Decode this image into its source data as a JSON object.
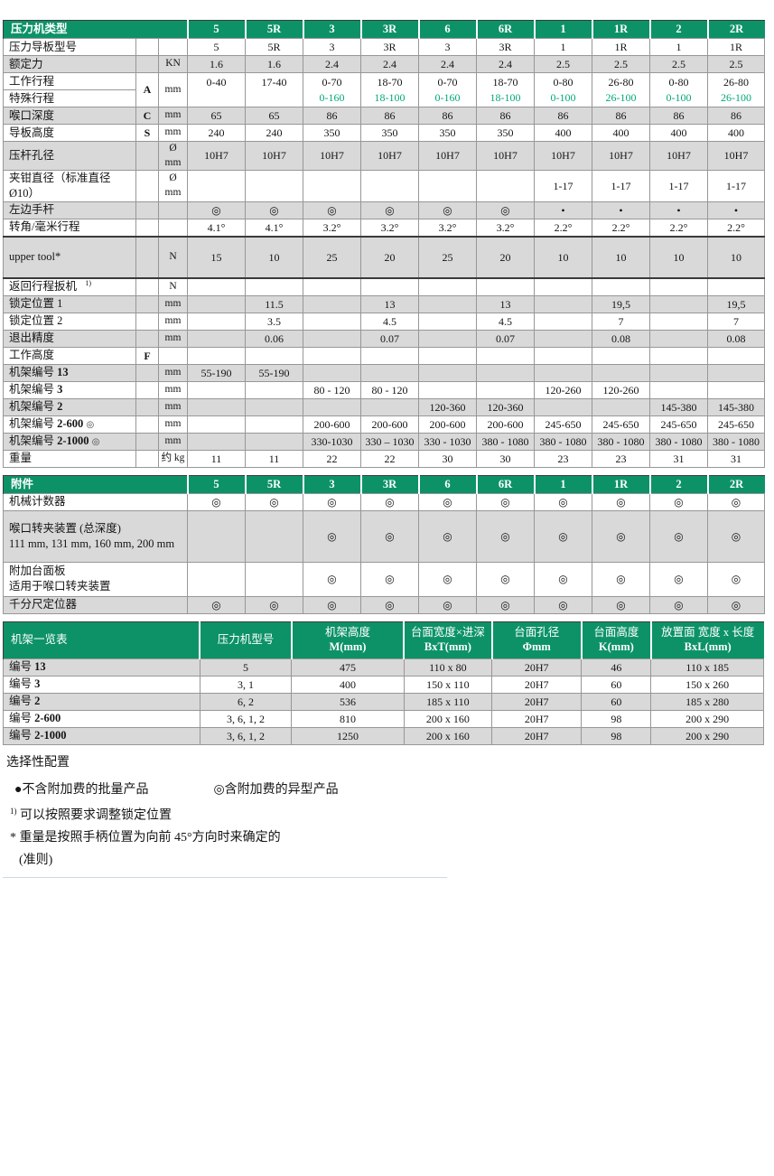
{
  "colors": {
    "header_green": "#0d9268",
    "special_green": "#00a87a",
    "row_gray": "#d9d9d9"
  },
  "press_table": {
    "title": "压力机类型",
    "columns": [
      "5",
      "5R",
      "3",
      "3R",
      "6",
      "6R",
      "1",
      "1R",
      "2",
      "2R"
    ],
    "rows": [
      {
        "label": "压力导板型号",
        "bg": "w",
        "values": [
          "5",
          "5R",
          "3",
          "3R",
          "3",
          "3R",
          "1",
          "1R",
          "1",
          "1R"
        ]
      },
      {
        "label": "额定力",
        "unit": "KN",
        "bg": "g",
        "values": [
          "1.6",
          "1.6",
          "2.4",
          "2.4",
          "2.4",
          "2.4",
          "2.5",
          "2.5",
          "2.5",
          "2.5"
        ]
      },
      {
        "type": "double",
        "label": "工作行程",
        "label2": "特殊行程",
        "letter": "A",
        "unit": "mm",
        "bg": "w",
        "values": [
          "0-40",
          "17-40",
          "0-70",
          "18-70",
          "0-70",
          "18-70",
          "0-80",
          "26-80",
          "0-80",
          "26-80"
        ],
        "values2": [
          "",
          "",
          "0-160",
          "18-100",
          "0-160",
          "18-100",
          "0-100",
          "26-100",
          "0-100",
          "26-100"
        ]
      },
      {
        "label": "喉口深度",
        "letter": "C",
        "unit": "mm",
        "bg": "g",
        "values": [
          "65",
          "65",
          "86",
          "86",
          "86",
          "86",
          "86",
          "86",
          "86",
          "86"
        ]
      },
      {
        "label": "导板高度",
        "letter": "S",
        "unit": "mm",
        "bg": "w",
        "values": [
          "240",
          "240",
          "350",
          "350",
          "350",
          "350",
          "400",
          "400",
          "400",
          "400"
        ]
      },
      {
        "label": "压杆孔径",
        "unit": "Ø mm",
        "bg": "g",
        "values": [
          "10H7",
          "10H7",
          "10H7",
          "10H7",
          "10H7",
          "10H7",
          "10H7",
          "10H7",
          "10H7",
          "10H7"
        ]
      },
      {
        "label": "夹钳直径（标准直径 Ø10）",
        "unit": "Ø mm",
        "bg": "w",
        "values": [
          "",
          "",
          "",
          "",
          "",
          "",
          "1-17",
          "1-17",
          "1-17",
          "1-17"
        ]
      },
      {
        "label": "左边手杆",
        "bg": "g",
        "values": [
          "◎",
          "◎",
          "◎",
          "◎",
          "◎",
          "◎",
          "•",
          "•",
          "•",
          "•"
        ]
      },
      {
        "label": "转角/毫米行程",
        "bg": "w",
        "values": [
          "4.1°",
          "4.1°",
          "3.2°",
          "3.2°",
          "3.2°",
          "3.2°",
          "2.2°",
          "2.2°",
          "2.2°",
          "2.2°"
        ]
      },
      {
        "label": "upper tool*",
        "unit": "N",
        "bg": "g",
        "size": "tall",
        "values": [
          "15",
          "10",
          "25",
          "20",
          "25",
          "20",
          "10",
          "10",
          "10",
          "10"
        ]
      },
      {
        "label": "返回行程扳机",
        "note_ref": "1)",
        "unit": "N",
        "bg": "w",
        "values": [
          "",
          "",
          "",
          "",
          "",
          "",
          "",
          "",
          "",
          ""
        ]
      },
      {
        "label": "锁定位置 1",
        "unit": "mm",
        "bg": "g",
        "values": [
          "",
          "11.5",
          "",
          "13",
          "",
          "13",
          "",
          "19,5",
          "",
          "19,5"
        ]
      },
      {
        "label": "锁定位置 2",
        "unit": "mm",
        "bg": "w",
        "values": [
          "",
          "3.5",
          "",
          "4.5",
          "",
          "4.5",
          "",
          "7",
          "",
          "7"
        ]
      },
      {
        "label": "退出精度",
        "unit": "mm",
        "bg": "g",
        "values": [
          "",
          "0.06",
          "",
          "0.07",
          "",
          "0.07",
          "",
          "0.08",
          "",
          "0.08"
        ]
      },
      {
        "label": "工作高度",
        "letter": "F",
        "bg": "w",
        "values": [
          "",
          "",
          "",
          "",
          "",
          "",
          "",
          "",
          "",
          ""
        ]
      },
      {
        "label": "机架编号",
        "label_bold": "13",
        "unit": "mm",
        "bg": "g",
        "values": [
          "55-190",
          "55-190",
          "",
          "",
          "",
          "",
          "",
          "",
          "",
          ""
        ]
      },
      {
        "label": "机架编号",
        "label_bold": "3",
        "unit": "mm",
        "bg": "w",
        "values": [
          "",
          "",
          "80 - 120",
          "80 - 120",
          "",
          "",
          "120-260",
          "120-260",
          "",
          ""
        ]
      },
      {
        "label": "机架编号",
        "label_bold": "2",
        "unit": "mm",
        "bg": "g",
        "values": [
          "",
          "",
          "",
          "",
          "120-360",
          "120-360",
          "",
          "",
          "145-380",
          "145-380"
        ]
      },
      {
        "label": "机架编号",
        "label_bold": "2-600",
        "symbol": "◎",
        "unit": "mm",
        "bg": "w",
        "values": [
          "",
          "",
          "200-600",
          "200-600",
          "200-600",
          "200-600",
          "245-650",
          "245-650",
          "245-650",
          "245-650"
        ]
      },
      {
        "label": "机架编号",
        "label_bold": "2-1000",
        "symbol": "◎",
        "unit": "mm",
        "bg": "g",
        "values": [
          "",
          "",
          "330-1030",
          "330 – 1030",
          "330 - 1030",
          "380 - 1080",
          "380 - 1080",
          "380 - 1080",
          "380 - 1080",
          "380 - 1080"
        ]
      },
      {
        "label": "重量",
        "unit": "约 kg",
        "bg": "w",
        "values": [
          "11",
          "11",
          "22",
          "22",
          "30",
          "30",
          "23",
          "23",
          "31",
          "31"
        ]
      }
    ]
  },
  "accessories_table": {
    "title": "附件",
    "columns": [
      "5",
      "5R",
      "3",
      "3R",
      "6",
      "6R",
      "1",
      "1R",
      "2",
      "2R"
    ],
    "rows": [
      {
        "label": "机械计数器",
        "bg": "w",
        "values": [
          "◎",
          "◎",
          "◎",
          "◎",
          "◎",
          "◎",
          "◎",
          "◎",
          "◎",
          "◎"
        ]
      },
      {
        "label": "喉口转夹装置 (总深度)",
        "label2": "111 mm, 131 mm, 160 mm, 200 mm",
        "bg": "g",
        "size": "tall2",
        "values": [
          "",
          "",
          "◎",
          "◎",
          "◎",
          "◎",
          "◎",
          "◎",
          "◎",
          "◎"
        ]
      },
      {
        "label": "附加台面板",
        "label2": "适用于喉口转夹装置",
        "bg": "w",
        "size": "tall3",
        "values": [
          "",
          "",
          "◎",
          "◎",
          "◎",
          "◎",
          "◎",
          "◎",
          "◎",
          "◎"
        ]
      },
      {
        "label": "千分尺定位器",
        "bg": "g",
        "values": [
          "◎",
          "◎",
          "◎",
          "◎",
          "◎",
          "◎",
          "◎",
          "◎",
          "◎",
          "◎"
        ]
      }
    ]
  },
  "frame_table": {
    "headers": [
      {
        "zh": "机架一览表",
        "en": ""
      },
      {
        "zh": "压力机型号",
        "en": ""
      },
      {
        "zh": "机架高度",
        "en": "M(mm)"
      },
      {
        "zh": "台面宽度×进深",
        "en": "BxT(mm)"
      },
      {
        "zh": "台面孔径",
        "en": "Φmm"
      },
      {
        "zh": "台面高度",
        "en": "K(mm)"
      },
      {
        "zh": "放置面 宽度 x 长度",
        "en": "BxL(mm)"
      }
    ],
    "rows": [
      {
        "label": "编号",
        "label_bold": "13",
        "bg": "g",
        "values": [
          "5",
          "475",
          "110 x 80",
          "20H7",
          "46",
          "110 x 185"
        ]
      },
      {
        "label": "编号",
        "label_bold": "3",
        "bg": "w",
        "values": [
          "3, 1",
          "400",
          "150 x 110",
          "20H7",
          "60",
          "150 x 260"
        ]
      },
      {
        "label": "编号",
        "label_bold": "2",
        "bg": "g",
        "values": [
          "6, 2",
          "536",
          "185 x 110",
          "20H7",
          "60",
          "185 x 280"
        ]
      },
      {
        "label": "编号",
        "label_bold": "2-600",
        "bg": "w",
        "values": [
          "3, 6, 1, 2",
          "810",
          "200 x 160",
          "20H7",
          "98",
          "200 x 290"
        ]
      },
      {
        "label": "编号",
        "label_bold": "2-1000",
        "bg": "g",
        "values": [
          "3, 6, 1, 2",
          "1250",
          "200 x 160",
          "20H7",
          "98",
          "200 x 290"
        ]
      }
    ]
  },
  "notes": {
    "title": "选择性配置",
    "legend_standard": "●不含附加费的批量产品",
    "legend_special": "◎含附加费的异型产品",
    "note1_marker": "1)",
    "note1": "可以按照要求调整锁定位置",
    "note2": "* 重量是按照手柄位置为向前 45°方向时来确定的",
    "note3": "(准则)"
  }
}
